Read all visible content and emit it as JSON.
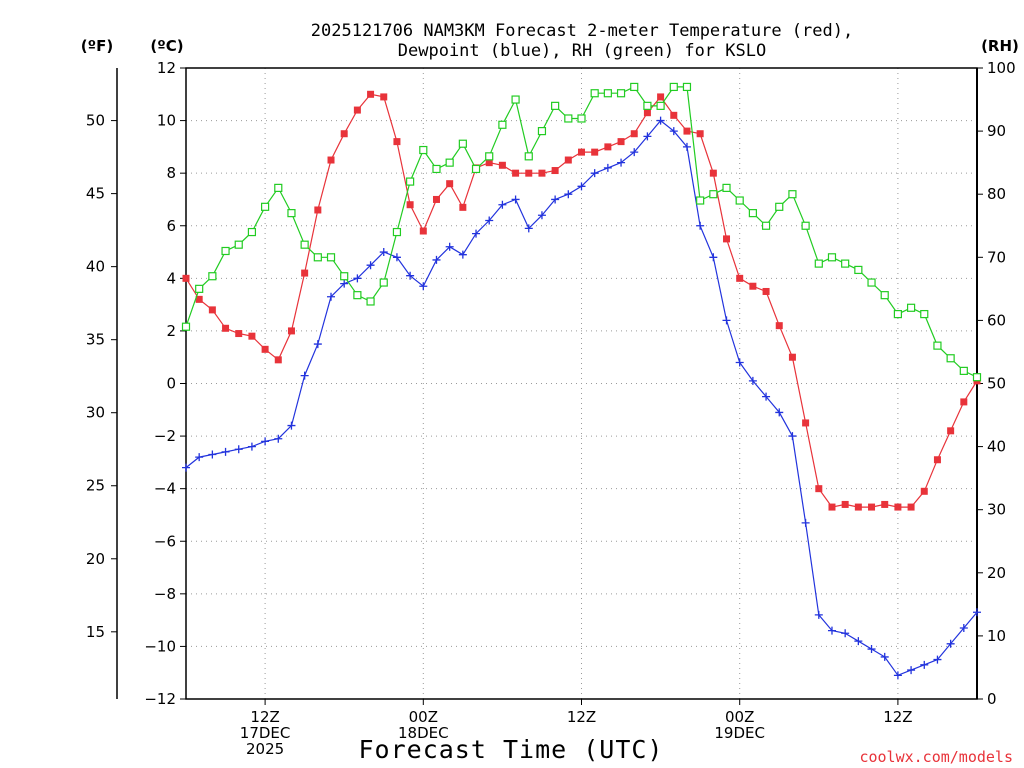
{
  "chart_data": {
    "type": "line",
    "title_lines": [
      "2025121706 NAM3KM Forecast 2-meter Temperature (red),",
      "Dewpoint (blue), RH (green) for KSLO"
    ],
    "xlabel": "Forecast Time (UTC)",
    "credit": "coolwx.com/models",
    "units": {
      "fahrenheit": "(ºF)",
      "celsius": "(ºC)",
      "rh": "(RH)"
    },
    "x_range": [
      0,
      60
    ],
    "celsius_axis": {
      "range": [
        -12,
        12
      ],
      "ticks": [
        "−12",
        "−10",
        "−8",
        "−6",
        "−4",
        "−2",
        "0",
        "2",
        "4",
        "6",
        "8",
        "10",
        "12"
      ],
      "tick_values": [
        -12,
        -10,
        -8,
        -6,
        -4,
        -2,
        0,
        2,
        4,
        6,
        8,
        10,
        12
      ]
    },
    "fahrenheit_axis": {
      "ticks": [
        "15",
        "20",
        "25",
        "30",
        "35",
        "40",
        "45",
        "50"
      ],
      "tick_values": [
        15,
        20,
        25,
        30,
        35,
        40,
        45,
        50
      ]
    },
    "rh_axis": {
      "range": [
        0,
        100
      ],
      "ticks": [
        "0",
        "10",
        "20",
        "30",
        "40",
        "50",
        "60",
        "70",
        "80",
        "90",
        "100"
      ],
      "tick_values": [
        0,
        10,
        20,
        30,
        40,
        50,
        60,
        70,
        80,
        90,
        100
      ]
    },
    "x_ticks": [
      {
        "x": 6,
        "lines": [
          "12Z",
          "17DEC",
          "2025"
        ]
      },
      {
        "x": 18,
        "lines": [
          "00Z",
          "18DEC"
        ]
      },
      {
        "x": 30,
        "lines": [
          "12Z"
        ]
      },
      {
        "x": 42,
        "lines": [
          "00Z",
          "19DEC"
        ]
      },
      {
        "x": 54,
        "lines": [
          "12Z"
        ]
      }
    ],
    "series": [
      {
        "name": "2-meter Temperature",
        "axis": "celsius",
        "color": "#e8333a",
        "marker": "filled-square",
        "values": [
          4.0,
          3.2,
          2.8,
          2.1,
          1.9,
          1.8,
          1.3,
          0.9,
          2.0,
          4.2,
          6.6,
          8.5,
          9.5,
          10.4,
          11.0,
          10.9,
          9.2,
          6.8,
          5.8,
          7.0,
          7.6,
          6.7,
          8.2,
          8.4,
          8.3,
          8.0,
          8.0,
          8.0,
          8.1,
          8.5,
          8.8,
          8.8,
          9.0,
          9.2,
          9.5,
          10.3,
          10.9,
          10.2,
          9.6,
          9.5,
          8.0,
          5.5,
          4.0,
          3.7,
          3.5,
          2.2,
          1.0,
          -1.5,
          -4.0,
          -4.7,
          -4.6,
          -4.7,
          -4.7,
          -4.6,
          -4.7,
          -4.7,
          -4.1,
          -2.9,
          -1.8,
          -0.7,
          0.1
        ]
      },
      {
        "name": "Dewpoint",
        "axis": "celsius",
        "color": "#2233dd",
        "marker": "plus",
        "values": [
          -3.2,
          -2.8,
          -2.7,
          -2.6,
          -2.5,
          -2.4,
          -2.2,
          -2.1,
          -1.6,
          0.3,
          1.5,
          3.3,
          3.8,
          4.0,
          4.5,
          5.0,
          4.8,
          4.1,
          3.7,
          4.7,
          5.2,
          4.9,
          5.7,
          6.2,
          6.8,
          7.0,
          5.9,
          6.4,
          7.0,
          7.2,
          7.5,
          8.0,
          8.2,
          8.4,
          8.8,
          9.4,
          10.0,
          9.6,
          9.0,
          6.0,
          4.8,
          2.4,
          0.8,
          0.1,
          -0.5,
          -1.1,
          -2.0,
          -5.3,
          -8.8,
          -9.4,
          -9.5,
          -9.8,
          -10.1,
          -10.4,
          -11.1,
          -10.9,
          -10.7,
          -10.5,
          -9.9,
          -9.3,
          -8.7
        ]
      },
      {
        "name": "RH",
        "axis": "rh",
        "color": "#22cc22",
        "marker": "open-square",
        "values": [
          59,
          65,
          67,
          71,
          72,
          74,
          78,
          81,
          77,
          72,
          70,
          70,
          67,
          64,
          63,
          66,
          74,
          82,
          87,
          84,
          85,
          88,
          84,
          86,
          91,
          95,
          86,
          90,
          94,
          92,
          92,
          96,
          96,
          96,
          97,
          94,
          94,
          97,
          97,
          79,
          80,
          81,
          79,
          77,
          75,
          78,
          80,
          75,
          69,
          70,
          69,
          68,
          66,
          64,
          61,
          62,
          61,
          56,
          54,
          52,
          51
        ]
      }
    ],
    "grid": true,
    "grid_style": "dotted"
  }
}
